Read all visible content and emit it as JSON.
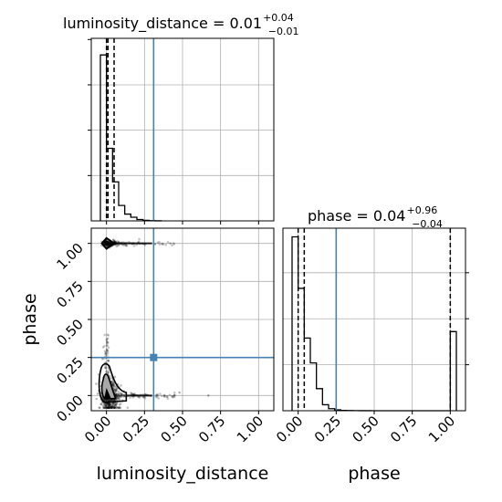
{
  "chart_data": {
    "type": "corner",
    "parameters": [
      "luminosity_distance",
      "phase"
    ],
    "truth": {
      "luminosity_distance": 0.31,
      "phase": 0.25
    },
    "truth_color": "#4682b4",
    "x_tick_labels": [
      "0.00",
      "0.25",
      "0.50",
      "0.75",
      "1.00"
    ],
    "y_tick_labels": [
      "0.00",
      "0.25",
      "0.50",
      "0.75",
      "1.00"
    ],
    "axis_range": [
      -0.1,
      1.1
    ],
    "grid": true,
    "panels": [
      {
        "id": "hist-luminosity_distance",
        "title": {
          "main": "luminosity_distance = 0.01",
          "sup": "+0.04",
          "sub": "−0.01"
        },
        "xlabel": "luminosity_distance",
        "bin_edges": [
          -0.04,
          0.0,
          0.04,
          0.08,
          0.12,
          0.16,
          0.2,
          0.24,
          0.28,
          0.32,
          0.36
        ],
        "counts": [
          3660,
          1600,
          860,
          340,
          150,
          80,
          30,
          12,
          4,
          1
        ],
        "quantiles": [
          0.0,
          0.01,
          0.05
        ]
      },
      {
        "id": "hist-phase",
        "title": {
          "main": "phase = 0.04",
          "sup": "+0.96",
          "sub": "−0.04"
        },
        "xlabel": "phase",
        "bin_edges": [
          -0.04,
          0.0,
          0.04,
          0.08,
          0.12,
          0.16,
          0.2,
          0.24,
          0.28,
          0.32,
          0.36,
          0.4,
          0.44,
          0.48,
          0.52,
          0.56,
          0.6,
          0.64,
          0.68,
          0.72,
          0.76,
          0.8,
          0.84,
          0.88,
          0.92,
          0.96,
          1.0,
          1.04
        ],
        "counts": [
          3780,
          2660,
          1580,
          1040,
          480,
          130,
          45,
          20,
          8,
          4,
          2,
          1,
          1,
          0,
          0,
          0,
          0,
          0,
          0,
          0,
          0,
          0,
          0,
          0,
          0,
          0,
          1720
        ],
        "quantiles": [
          0.0,
          0.04,
          1.0
        ]
      },
      {
        "id": "scatter-luminosity_distance-phase",
        "xlabel": "luminosity_distance",
        "ylabel": "phase",
        "dense_regions": [
          {
            "x": 0.0,
            "y": 0.0,
            "x_spread": 0.04,
            "y_spread": 0.06,
            "points": 520
          },
          {
            "x": 0.0,
            "y": 1.0,
            "x_spread": 0.03,
            "y_spread": 0.01,
            "points": 160
          }
        ],
        "tails": [
          {
            "y": 0.0,
            "x_from": 0.05,
            "x_to": 0.45,
            "points": 110
          },
          {
            "y": 1.0,
            "x_from": 0.05,
            "x_to": 0.45,
            "points": 70
          },
          {
            "x": 0.0,
            "y_from": 0.05,
            "y_to": 0.4,
            "points": 90
          }
        ],
        "outliers": [
          [
            0.67,
            0.0
          ],
          [
            0.42,
            1.0
          ],
          [
            0.48,
            0.02
          ]
        ]
      }
    ]
  }
}
